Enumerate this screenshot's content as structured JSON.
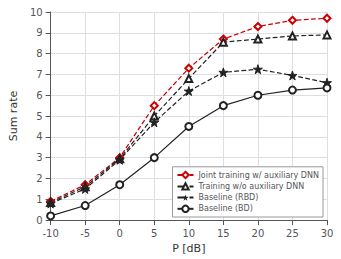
{
  "chart_data": {
    "type": "line",
    "xlabel": "P [dB]",
    "ylabel": "Sum rate",
    "x": [
      -10,
      -5,
      0,
      5,
      10,
      15,
      20,
      25,
      30
    ],
    "series": [
      {
        "name": "Joint training w/ auxiliary DNN",
        "color": "#cc0000",
        "marker": "diamond",
        "line_style": "dashed",
        "values": [
          0.9,
          1.7,
          3.0,
          5.5,
          7.3,
          8.7,
          9.3,
          9.6,
          9.7
        ]
      },
      {
        "name": "Training w/o auxiliary DNN",
        "color": "#222222",
        "marker": "triangle",
        "line_style": "dashed",
        "values": [
          0.85,
          1.6,
          2.95,
          5.0,
          6.8,
          8.55,
          8.7,
          8.85,
          8.9
        ]
      },
      {
        "name": "Baseline (RBD)",
        "color": "#222222",
        "marker": "star",
        "line_style": "dashed",
        "values": [
          0.8,
          1.5,
          2.9,
          4.7,
          6.2,
          7.1,
          7.25,
          6.95,
          6.6
        ]
      },
      {
        "name": "Baseline (BD)",
        "color": "#222222",
        "marker": "circle",
        "line_style": "solid",
        "values": [
          0.2,
          0.7,
          1.7,
          3.0,
          4.5,
          5.5,
          6.0,
          6.25,
          6.35
        ]
      }
    ],
    "xlim": [
      -10,
      30
    ],
    "ylim": [
      0,
      10
    ],
    "xticks": [
      -10,
      -5,
      0,
      5,
      10,
      15,
      20,
      25,
      30
    ],
    "yticks": [
      0,
      1,
      2,
      3,
      4,
      5,
      6,
      7,
      8,
      9,
      10
    ],
    "grid": true,
    "legend": "lower right"
  }
}
